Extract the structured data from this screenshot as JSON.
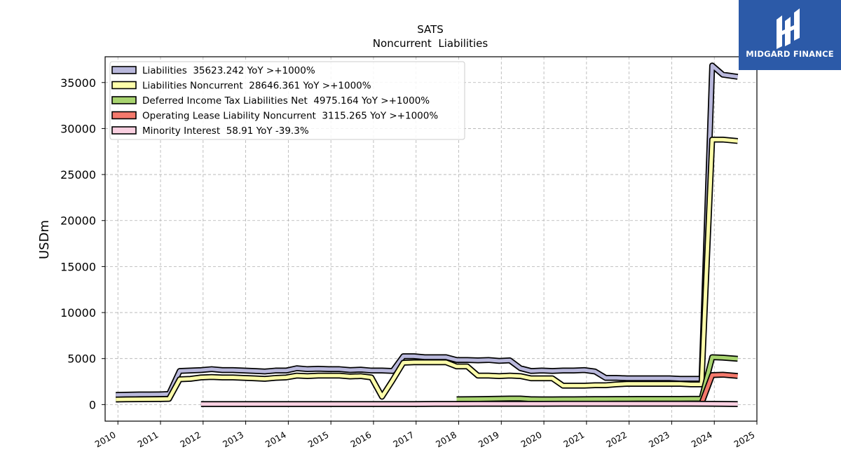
{
  "brand": {
    "name": "MIDGARD FINANCE",
    "bg_color": "#2c5aa8"
  },
  "chart_data": {
    "type": "line",
    "title": "SATS",
    "subtitle": "Noncurrent  Liabilities",
    "ylabel": "USDm",
    "xlabel": "",
    "xlim": [
      2009.7,
      2025.0
    ],
    "ylim": [
      -1800,
      37800
    ],
    "x_ticks": [
      "2010",
      "2011",
      "2012",
      "2013",
      "2014",
      "2015",
      "2016",
      "2017",
      "2018",
      "2019",
      "2020",
      "2021",
      "2022",
      "2023",
      "2024",
      "2025"
    ],
    "y_ticks": [
      0,
      5000,
      10000,
      15000,
      20000,
      25000,
      30000,
      35000
    ],
    "grid": true,
    "legend_position": "upper-left",
    "series": [
      {
        "name": "Liabilities",
        "legend": "Liabilities  35623.242 YoY >+1000%",
        "color": "#b9b8dc",
        "points": [
          [
            2009.95,
            1050
          ],
          [
            2010.2,
            1080
          ],
          [
            2010.5,
            1100
          ],
          [
            2010.75,
            1100
          ],
          [
            2011.0,
            1120
          ],
          [
            2011.2,
            1150
          ],
          [
            2011.45,
            3650
          ],
          [
            2011.7,
            3700
          ],
          [
            2011.95,
            3750
          ],
          [
            2012.2,
            3850
          ],
          [
            2012.45,
            3750
          ],
          [
            2012.7,
            3750
          ],
          [
            2012.95,
            3700
          ],
          [
            2013.2,
            3650
          ],
          [
            2013.45,
            3600
          ],
          [
            2013.7,
            3700
          ],
          [
            2013.95,
            3700
          ],
          [
            2014.2,
            3950
          ],
          [
            2014.45,
            3850
          ],
          [
            2014.7,
            3900
          ],
          [
            2014.95,
            3850
          ],
          [
            2015.2,
            3850
          ],
          [
            2015.45,
            3750
          ],
          [
            2015.7,
            3800
          ],
          [
            2015.95,
            3700
          ],
          [
            2016.2,
            3700
          ],
          [
            2016.45,
            3650
          ],
          [
            2016.7,
            5250
          ],
          [
            2016.95,
            5250
          ],
          [
            2017.2,
            5150
          ],
          [
            2017.45,
            5150
          ],
          [
            2017.7,
            5150
          ],
          [
            2017.95,
            4850
          ],
          [
            2018.2,
            4850
          ],
          [
            2018.45,
            4800
          ],
          [
            2018.7,
            4850
          ],
          [
            2018.95,
            4750
          ],
          [
            2019.2,
            4800
          ],
          [
            2019.45,
            3950
          ],
          [
            2019.7,
            3650
          ],
          [
            2019.95,
            3700
          ],
          [
            2020.2,
            3650
          ],
          [
            2020.45,
            3700
          ],
          [
            2020.7,
            3700
          ],
          [
            2020.95,
            3750
          ],
          [
            2021.2,
            3600
          ],
          [
            2021.45,
            2900
          ],
          [
            2021.7,
            2900
          ],
          [
            2021.95,
            2850
          ],
          [
            2022.2,
            2850
          ],
          [
            2022.45,
            2850
          ],
          [
            2022.7,
            2850
          ],
          [
            2022.95,
            2850
          ],
          [
            2023.2,
            2800
          ],
          [
            2023.45,
            2800
          ],
          [
            2023.7,
            2800
          ],
          [
            2023.95,
            36850
          ],
          [
            2024.2,
            35850
          ],
          [
            2024.55,
            35623
          ]
        ]
      },
      {
        "name": "Liabilities Noncurrent",
        "legend": "Liabilities Noncurrent  28646.361 YoY >+1000%",
        "color": "#fdfdaa",
        "points": [
          [
            2009.95,
            550
          ],
          [
            2010.2,
            570
          ],
          [
            2010.5,
            580
          ],
          [
            2010.75,
            590
          ],
          [
            2011.0,
            600
          ],
          [
            2011.2,
            620
          ],
          [
            2011.45,
            2750
          ],
          [
            2011.7,
            2800
          ],
          [
            2011.95,
            2950
          ],
          [
            2012.2,
            3000
          ],
          [
            2012.45,
            2950
          ],
          [
            2012.7,
            2950
          ],
          [
            2012.95,
            2900
          ],
          [
            2013.2,
            2850
          ],
          [
            2013.45,
            2800
          ],
          [
            2013.7,
            2900
          ],
          [
            2013.95,
            2950
          ],
          [
            2014.2,
            3150
          ],
          [
            2014.45,
            3100
          ],
          [
            2014.7,
            3150
          ],
          [
            2014.95,
            3150
          ],
          [
            2015.2,
            3150
          ],
          [
            2015.45,
            3050
          ],
          [
            2015.7,
            3100
          ],
          [
            2015.95,
            2950
          ],
          [
            2016.2,
            850
          ],
          [
            2016.45,
            2650
          ],
          [
            2016.7,
            4550
          ],
          [
            2016.95,
            4600
          ],
          [
            2017.2,
            4600
          ],
          [
            2017.45,
            4600
          ],
          [
            2017.7,
            4600
          ],
          [
            2017.95,
            4150
          ],
          [
            2018.2,
            4150
          ],
          [
            2018.45,
            3150
          ],
          [
            2018.7,
            3150
          ],
          [
            2018.95,
            3100
          ],
          [
            2019.2,
            3150
          ],
          [
            2019.45,
            3100
          ],
          [
            2019.7,
            2850
          ],
          [
            2019.95,
            2850
          ],
          [
            2020.2,
            2850
          ],
          [
            2020.45,
            2050
          ],
          [
            2020.7,
            2050
          ],
          [
            2020.95,
            2050
          ],
          [
            2021.2,
            2100
          ],
          [
            2021.45,
            2100
          ],
          [
            2021.7,
            2200
          ],
          [
            2021.95,
            2250
          ],
          [
            2022.2,
            2250
          ],
          [
            2022.45,
            2250
          ],
          [
            2022.7,
            2250
          ],
          [
            2022.95,
            2250
          ],
          [
            2023.2,
            2250
          ],
          [
            2023.45,
            2200
          ],
          [
            2023.7,
            2200
          ],
          [
            2023.95,
            28800
          ],
          [
            2024.2,
            28800
          ],
          [
            2024.55,
            28646
          ]
        ]
      },
      {
        "name": "Deferred Income Tax Liabilities Net",
        "legend": "Deferred Income Tax Liabilities Net  4975.164 YoY >+1000%",
        "color": "#a8d46f",
        "points": [
          [
            2017.95,
            580
          ],
          [
            2018.2,
            590
          ],
          [
            2018.45,
            600
          ],
          [
            2018.7,
            620
          ],
          [
            2018.95,
            640
          ],
          [
            2019.2,
            650
          ],
          [
            2019.45,
            660
          ],
          [
            2019.7,
            580
          ],
          [
            2019.95,
            570
          ],
          [
            2020.2,
            570
          ],
          [
            2020.45,
            580
          ],
          [
            2020.7,
            580
          ],
          [
            2020.95,
            590
          ],
          [
            2021.2,
            600
          ],
          [
            2021.45,
            600
          ],
          [
            2021.7,
            610
          ],
          [
            2021.95,
            610
          ],
          [
            2022.2,
            620
          ],
          [
            2022.45,
            620
          ],
          [
            2022.7,
            620
          ],
          [
            2022.95,
            620
          ],
          [
            2023.2,
            620
          ],
          [
            2023.45,
            630
          ],
          [
            2023.7,
            630
          ],
          [
            2023.95,
            5150
          ],
          [
            2024.2,
            5100
          ],
          [
            2024.55,
            4975
          ]
        ]
      },
      {
        "name": "Operating Lease Liability Noncurrent",
        "legend": "Operating Lease Liability Noncurrent  3115.265 YoY >+1000%",
        "color": "#f4796c",
        "points": [
          [
            2023.7,
            120
          ],
          [
            2023.95,
            3200
          ],
          [
            2024.2,
            3250
          ],
          [
            2024.55,
            3115
          ]
        ]
      },
      {
        "name": "Minority Interest",
        "legend": "Minority Interest  58.91 YoY -39.3%",
        "color": "#f9cfe0",
        "points": [
          [
            2011.95,
            60
          ],
          [
            2012.45,
            60
          ],
          [
            2012.95,
            60
          ],
          [
            2013.45,
            60
          ],
          [
            2013.95,
            60
          ],
          [
            2014.45,
            60
          ],
          [
            2014.95,
            60
          ],
          [
            2015.45,
            60
          ],
          [
            2015.95,
            60
          ],
          [
            2016.45,
            60
          ],
          [
            2016.95,
            60
          ],
          [
            2017.45,
            70
          ],
          [
            2017.95,
            75
          ],
          [
            2018.45,
            80
          ],
          [
            2018.95,
            80
          ],
          [
            2019.45,
            85
          ],
          [
            2019.95,
            90
          ],
          [
            2020.45,
            95
          ],
          [
            2020.95,
            100
          ],
          [
            2021.45,
            100
          ],
          [
            2021.95,
            97
          ],
          [
            2022.45,
            97
          ],
          [
            2022.95,
            97
          ],
          [
            2023.45,
            97
          ],
          [
            2023.95,
            80
          ],
          [
            2024.2,
            70
          ],
          [
            2024.55,
            59
          ]
        ]
      }
    ]
  }
}
